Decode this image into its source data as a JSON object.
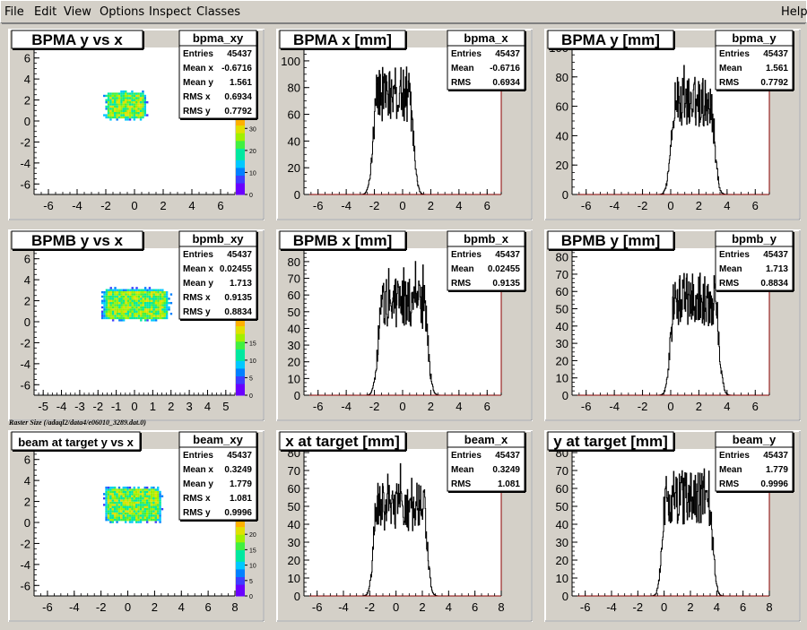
{
  "menu": {
    "file": "File",
    "edit": "Edit",
    "view": "View",
    "options": "Options",
    "inspect": "Inspect",
    "classes": "Classes",
    "help": "Help"
  },
  "caption": "Raster Size (/adaql2/data4/e06010_3289.dat.0)",
  "colors": {
    "background": "#d4d0c8",
    "frame": "#ffffff",
    "axis": "#000000",
    "histo_axis": "#8b0000"
  },
  "chart_data": [
    {
      "type": "heatmap",
      "title": "BPMA y vs x",
      "stats_name": "bpma_xy",
      "stats": [
        [
          "Entries",
          "45437"
        ],
        [
          "Mean x",
          "-0.6716"
        ],
        [
          "Mean y",
          "1.561"
        ],
        [
          "RMS x",
          "0.6934"
        ],
        [
          "RMS y",
          "0.7792"
        ]
      ],
      "xlim": [
        -7,
        7
      ],
      "ylim": [
        -7,
        7
      ],
      "xticks": [
        -6,
        -4,
        -2,
        0,
        2,
        4,
        6
      ],
      "yticks": [
        -6,
        -4,
        -2,
        0,
        2,
        4,
        6
      ],
      "mean_x": -0.6716,
      "mean_y": 1.561,
      "rms_x": 0.6934,
      "rms_y": 0.7792,
      "palette_ticks": [
        0,
        10,
        20,
        30
      ],
      "palette_max": 35
    },
    {
      "type": "bar",
      "title": "BPMA x [mm]",
      "stats_name": "bpma_x",
      "stats": [
        [
          "Entries",
          "45437"
        ],
        [
          "Mean",
          "-0.6716"
        ],
        [
          "RMS",
          "0.6934"
        ]
      ],
      "xlim": [
        -7,
        7
      ],
      "ylim": [
        0,
        110
      ],
      "xticks": [
        -6,
        -4,
        -2,
        0,
        2,
        4,
        6
      ],
      "yticks": [
        0,
        20,
        40,
        60,
        80,
        100
      ],
      "mean": -0.6716,
      "rms": 0.6934,
      "peak": 75
    },
    {
      "type": "bar",
      "title": "BPMA y [mm]",
      "stats_name": "bpma_y",
      "stats": [
        [
          "Entries",
          "45437"
        ],
        [
          "Mean",
          "1.561"
        ],
        [
          "RMS",
          "0.7792"
        ]
      ],
      "xlim": [
        -7,
        7
      ],
      "ylim": [
        0,
        100
      ],
      "xticks": [
        -6,
        -4,
        -2,
        0,
        2,
        4,
        6
      ],
      "yticks": [
        0,
        20,
        40,
        60,
        80,
        100
      ],
      "mean": 1.561,
      "rms": 0.7792,
      "peak": 63
    },
    {
      "type": "heatmap",
      "title": "BPMB y vs x",
      "stats_name": "bpmb_xy",
      "stats": [
        [
          "Entries",
          "45437"
        ],
        [
          "Mean x",
          "0.02455"
        ],
        [
          "Mean y",
          "1.713"
        ],
        [
          "RMS x",
          "0.9135"
        ],
        [
          "RMS y",
          "0.8834"
        ]
      ],
      "xlim": [
        -5.5,
        5.5
      ],
      "ylim": [
        -7,
        7
      ],
      "xticks": [
        -5,
        -4,
        -3,
        -2,
        -1,
        0,
        1,
        2,
        3,
        4,
        5
      ],
      "yticks": [
        -6,
        -4,
        -2,
        0,
        2,
        4,
        6
      ],
      "mean_x": 0.02455,
      "mean_y": 1.713,
      "rms_x": 0.9135,
      "rms_y": 0.8834,
      "palette_ticks": [
        0,
        5,
        10,
        15
      ],
      "palette_max": 22
    },
    {
      "type": "bar",
      "title": "BPMB x [mm]",
      "stats_name": "bpmb_x",
      "stats": [
        [
          "Entries",
          "45437"
        ],
        [
          "Mean",
          "0.02455"
        ],
        [
          "RMS",
          "0.9135"
        ]
      ],
      "xlim": [
        -7,
        7
      ],
      "ylim": [
        0,
        88
      ],
      "xticks": [
        -6,
        -4,
        -2,
        0,
        2,
        4,
        6
      ],
      "yticks": [
        0,
        10,
        20,
        30,
        40,
        50,
        60,
        70,
        80
      ],
      "mean": 0.02455,
      "rms": 0.9135,
      "peak": 55
    },
    {
      "type": "bar",
      "title": "BPMB y [mm]",
      "stats_name": "bpmb_y",
      "stats": [
        [
          "Entries",
          "45437"
        ],
        [
          "Mean",
          "1.713"
        ],
        [
          "RMS",
          "0.8834"
        ]
      ],
      "xlim": [
        -7,
        7
      ],
      "ylim": [
        0,
        85
      ],
      "xticks": [
        -6,
        -4,
        -2,
        0,
        2,
        4,
        6
      ],
      "yticks": [
        0,
        10,
        20,
        30,
        40,
        50,
        60,
        70,
        80
      ],
      "mean": 1.713,
      "rms": 0.8834,
      "peak": 55
    },
    {
      "type": "heatmap",
      "title": "beam at target y vs x",
      "stats_name": "beam_xy",
      "stats": [
        [
          "Entries",
          "45437"
        ],
        [
          "Mean x",
          "0.3249"
        ],
        [
          "Mean y",
          "1.779"
        ],
        [
          "RMS x",
          "1.081"
        ],
        [
          "RMS y",
          "0.9996"
        ]
      ],
      "xlim": [
        -7,
        8
      ],
      "ylim": [
        -7,
        7
      ],
      "xticks": [
        -6,
        -4,
        -2,
        0,
        2,
        4,
        6,
        8
      ],
      "yticks": [
        -6,
        -4,
        -2,
        0,
        2,
        4,
        6
      ],
      "mean_x": 0.3249,
      "mean_y": 1.779,
      "rms_x": 1.081,
      "rms_y": 0.9996,
      "palette_ticks": [
        0,
        5,
        10,
        15,
        20
      ],
      "palette_max": 25
    },
    {
      "type": "bar",
      "title": "x at target [mm]",
      "stats_name": "beam_x",
      "stats": [
        [
          "Entries",
          "45437"
        ],
        [
          "Mean",
          "0.3249"
        ],
        [
          "RMS",
          "1.081"
        ]
      ],
      "xlim": [
        -7,
        8
      ],
      "ylim": [
        0,
        82
      ],
      "xticks": [
        -6,
        -4,
        -2,
        0,
        2,
        4,
        6,
        8
      ],
      "yticks": [
        0,
        10,
        20,
        30,
        40,
        50,
        60,
        70,
        80
      ],
      "mean": 0.3249,
      "rms": 1.081,
      "peak": 50
    },
    {
      "type": "bar",
      "title": "y at target [mm]",
      "stats_name": "beam_y",
      "stats": [
        [
          "Entries",
          "45437"
        ],
        [
          "Mean",
          "1.779"
        ],
        [
          "RMS",
          "0.9996"
        ]
      ],
      "xlim": [
        -7,
        8
      ],
      "ylim": [
        0,
        82
      ],
      "xticks": [
        -6,
        -4,
        -2,
        0,
        2,
        4,
        6,
        8
      ],
      "yticks": [
        0,
        10,
        20,
        30,
        40,
        50,
        60,
        70,
        80
      ],
      "mean": 1.779,
      "rms": 0.9996,
      "peak": 55
    }
  ]
}
